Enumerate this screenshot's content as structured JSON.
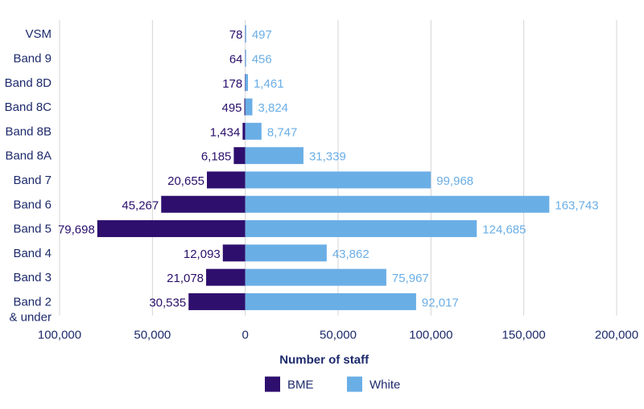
{
  "chart_data": {
    "type": "bar",
    "orientation": "horizontal",
    "categories": [
      "VSM",
      "Band 9",
      "Band 8D",
      "Band 8C",
      "Band 8B",
      "Band 8A",
      "Band 7",
      "Band 6",
      "Band 5",
      "Band 4",
      "Band 3",
      "Band 2\n& under"
    ],
    "series": [
      {
        "name": "BME",
        "color": "#2e0f6e",
        "values": [
          78,
          64,
          178,
          495,
          1434,
          6185,
          20655,
          45267,
          79698,
          12093,
          21078,
          30535
        ],
        "labels": [
          "78",
          "64",
          "178",
          "495",
          "1,434",
          "6,185",
          "20,655",
          "45,267",
          "79,698",
          "12,093",
          "21,078",
          "30,535"
        ]
      },
      {
        "name": "White",
        "color": "#6aaee6",
        "values": [
          497,
          456,
          1461,
          3824,
          8747,
          31339,
          99968,
          163743,
          124685,
          43862,
          75967,
          92017
        ],
        "labels": [
          "497",
          "456",
          "1,461",
          "3,824",
          "8,747",
          "31,339",
          "99,968",
          "163,743",
          "124,685",
          "43,862",
          "75,967",
          "92,017"
        ]
      }
    ],
    "xlim": [
      -100000,
      200000
    ],
    "xticks": [
      -100000,
      -50000,
      0,
      50000,
      100000,
      150000,
      200000
    ],
    "xtick_labels": [
      "100,000",
      "50,000",
      "0",
      "50,000",
      "100,000",
      "150,000",
      "200,000"
    ],
    "xlabel": "Number of staff",
    "ylabel": "",
    "title": "",
    "grid": true,
    "legend": "bottom"
  }
}
